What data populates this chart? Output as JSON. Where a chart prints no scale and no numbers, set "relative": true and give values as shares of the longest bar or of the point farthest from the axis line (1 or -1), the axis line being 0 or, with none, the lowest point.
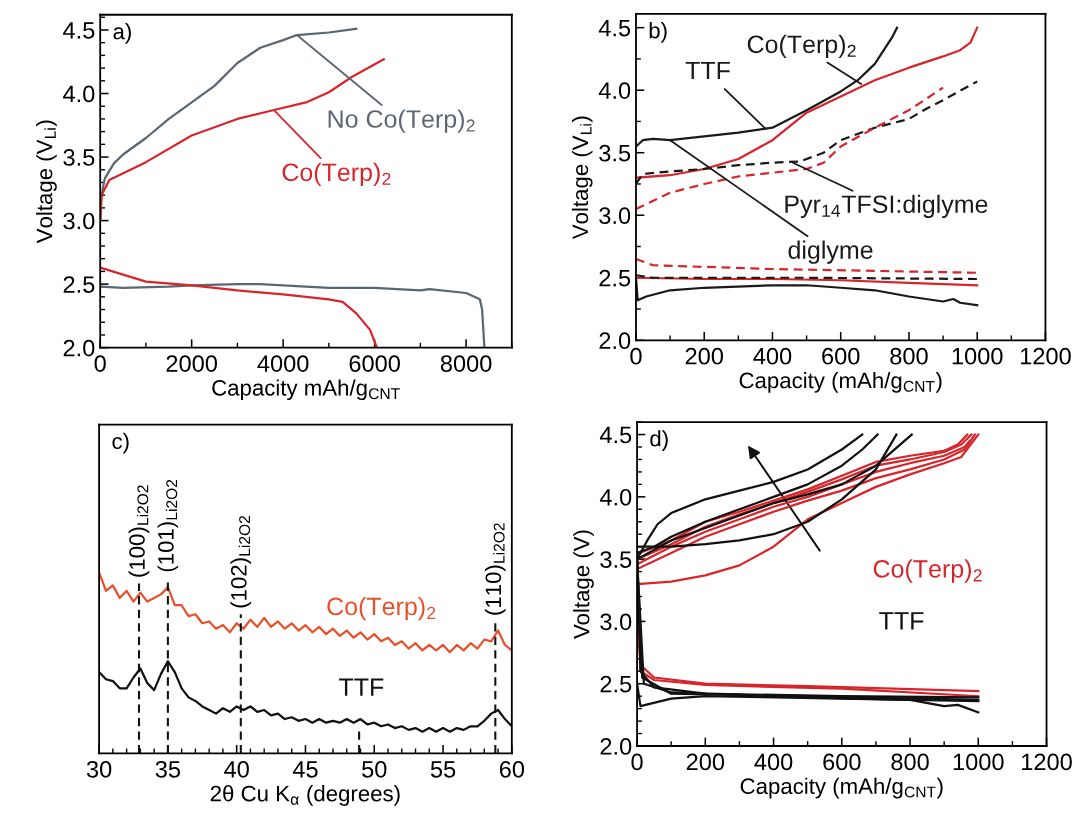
{
  "chart_data": [
    {
      "type": "line",
      "title": "a)",
      "xlabel": "Capacity mAh/g$_{CNT}$",
      "ylabel": "Voltage (V$_{Li}$)",
      "xlim": [
        0,
        9000
      ],
      "ylim": [
        2.0,
        4.62
      ],
      "xticks": [
        0,
        2000,
        4000,
        6000,
        8000
      ],
      "yticks": [
        {
          "value": 2.0,
          "label": "2.0"
        },
        {
          "value": 2.5,
          "label": "2.5"
        },
        {
          "value": 3.0,
          "label": "3.0"
        },
        {
          "value": 3.5,
          "label": "3.5"
        },
        {
          "value": 4.0,
          "label": "4.0"
        },
        {
          "value": 4.5,
          "label": "4.5"
        }
      ],
      "series": [
        {
          "color": "#5b6673",
          "x": [
            0,
            30,
            100,
            300,
            500,
            1000,
            1500,
            2000,
            2500,
            3000,
            3500,
            4000,
            4300,
            5000,
            5600
          ],
          "values": [
            3.0,
            3.2,
            3.33,
            3.45,
            3.52,
            3.65,
            3.8,
            3.93,
            4.06,
            4.24,
            4.36,
            4.42,
            4.46,
            4.48,
            4.51
          ]
        },
        {
          "color": "#d7262b",
          "x": [
            0,
            30,
            200,
            1000,
            2000,
            3000,
            3800,
            4500,
            5000,
            5500,
            6200
          ],
          "values": [
            3.0,
            3.2,
            3.32,
            3.46,
            3.67,
            3.8,
            3.87,
            3.93,
            4.01,
            4.13,
            4.27
          ]
        },
        {
          "color": "#5b6673",
          "x": [
            0,
            500,
            1500,
            2000,
            3000,
            3500,
            4000,
            5000,
            6000,
            7000,
            7200,
            8000,
            8300,
            8350,
            8400
          ],
          "values": [
            2.48,
            2.47,
            2.48,
            2.49,
            2.5,
            2.5,
            2.49,
            2.47,
            2.47,
            2.45,
            2.46,
            2.43,
            2.38,
            2.3,
            2.0
          ]
        },
        {
          "color": "#d7262b",
          "x": [
            0,
            1000,
            2000,
            3000,
            4000,
            4500,
            5000,
            5300,
            5600,
            5900,
            6050
          ],
          "values": [
            2.63,
            2.52,
            2.49,
            2.45,
            2.42,
            2.4,
            2.38,
            2.36,
            2.27,
            2.14,
            2.0
          ]
        }
      ],
      "annotations": [
        {
          "text": "No Co(Terp)$_{2}$",
          "x": 4300,
          "y": 4.46
        },
        {
          "text": "Co(Terp)$_{2}$",
          "x": 3800,
          "y": 3.87
        }
      ]
    },
    {
      "type": "line",
      "title": "b)",
      "xlabel": "Capacity (mAh/g$_{CNT}$)",
      "ylabel": "Voltage (V$_{Li}$)",
      "xlim": [
        0,
        1200
      ],
      "ylim": [
        2.0,
        4.61
      ],
      "xticks": [
        0,
        200,
        400,
        600,
        800,
        1000,
        1200
      ],
      "yticks": [
        {
          "value": 2.0,
          "label": "2.0"
        },
        {
          "value": 2.5,
          "label": "2.5"
        },
        {
          "value": 3.0,
          "label": "3.0"
        },
        {
          "value": 3.5,
          "label": "3.5"
        },
        {
          "value": 4.0,
          "label": "4.0"
        },
        {
          "value": 4.5,
          "label": "4.5"
        }
      ],
      "series": [
        {
          "color": "#1a1a1a",
          "line_style": "solid",
          "x": [
            0,
            20,
            50,
            100,
            200,
            300,
            400,
            500,
            600,
            650,
            700,
            750,
            765
          ],
          "values": [
            3.55,
            3.6,
            3.61,
            3.6,
            3.63,
            3.66,
            3.7,
            3.84,
            3.99,
            4.08,
            4.21,
            4.42,
            4.5
          ]
        },
        {
          "color": "#d7262b",
          "line_style": "solid",
          "x": [
            0,
            100,
            200,
            300,
            400,
            500,
            600,
            700,
            800,
            900,
            950,
            980,
            1000
          ],
          "values": [
            3.3,
            3.32,
            3.37,
            3.45,
            3.6,
            3.82,
            3.95,
            4.08,
            4.18,
            4.27,
            4.32,
            4.38,
            4.5
          ]
        },
        {
          "color": "#1a1a1a",
          "line_style": "dashed",
          "x": [
            0,
            20,
            100,
            200,
            300,
            400,
            480,
            550,
            600,
            700,
            800,
            850,
            900,
            1000
          ],
          "values": [
            3.25,
            3.33,
            3.35,
            3.37,
            3.4,
            3.42,
            3.43,
            3.5,
            3.6,
            3.7,
            3.77,
            3.85,
            3.92,
            4.07
          ]
        },
        {
          "color": "#d7262b",
          "line_style": "dashed",
          "x": [
            0,
            100,
            200,
            300,
            400,
            500,
            550,
            600,
            700,
            800,
            900
          ],
          "values": [
            3.05,
            3.18,
            3.25,
            3.31,
            3.34,
            3.37,
            3.42,
            3.55,
            3.7,
            3.84,
            4.02
          ]
        },
        {
          "color": "#1a1a1a",
          "line_style": "solid",
          "x": [
            0,
            5,
            30,
            100,
            200,
            400,
            500,
            600,
            700,
            800,
            900,
            930,
            950,
            1000
          ],
          "values": [
            2.5,
            2.32,
            2.35,
            2.4,
            2.42,
            2.44,
            2.44,
            2.42,
            2.4,
            2.35,
            2.31,
            2.33,
            2.3,
            2.28
          ]
        },
        {
          "color": "#d7262b",
          "line_style": "solid",
          "x": [
            0,
            200,
            400,
            600,
            800,
            1000
          ],
          "values": [
            2.5,
            2.49,
            2.49,
            2.48,
            2.46,
            2.44
          ]
        },
        {
          "color": "#1a1a1a",
          "line_style": "dashed",
          "x": [
            0,
            50,
            500,
            1000
          ],
          "values": [
            2.52,
            2.5,
            2.5,
            2.49
          ]
        },
        {
          "color": "#d7262b",
          "line_style": "dashed",
          "x": [
            0,
            50,
            400,
            1000
          ],
          "values": [
            2.65,
            2.6,
            2.57,
            2.54
          ]
        }
      ],
      "annotations": [
        {
          "text": "TTF",
          "x": 380,
          "y": 3.69
        },
        {
          "text": "Co(Terp)$_{2}$",
          "x": 660,
          "y": 4.05
        },
        {
          "text": "Pyr$_{14}$TFSI:diglyme",
          "x": 460,
          "y": 3.42
        },
        {
          "text": "diglyme",
          "x": 100,
          "y": 3.6
        }
      ]
    },
    {
      "type": "line",
      "title": "c)",
      "xlabel": "2θ Cu K$_{α}$ (degrees)",
      "relative": true,
      "tick_labels": "x",
      "xlim": [
        30,
        60
      ],
      "xticks": [
        30,
        35,
        40,
        45,
        50,
        55,
        60
      ],
      "x": [
        30,
        30.5,
        31,
        31.5,
        32,
        32.5,
        33,
        33.5,
        34,
        34.5,
        35,
        35.5,
        36,
        36.5,
        37,
        37.5,
        38,
        38.5,
        39,
        39.5,
        40,
        40.5,
        41,
        41.5,
        42,
        42.5,
        43,
        43.5,
        44,
        44.5,
        45,
        45.5,
        46,
        46.5,
        47,
        47.5,
        48,
        48.5,
        49,
        49.5,
        50,
        50.5,
        51,
        51.5,
        52,
        52.5,
        53,
        53.5,
        54,
        54.5,
        55,
        55.5,
        56,
        56.5,
        57,
        57.5,
        58,
        58.5,
        59,
        59.5,
        60
      ],
      "series": [
        {
          "name": "Co(Terp)$_{2}$",
          "color": "#e8502c",
          "values": [
            1.0,
            0.9,
            0.93,
            0.86,
            0.9,
            0.84,
            0.89,
            0.84,
            0.86,
            0.88,
            0.92,
            0.82,
            0.82,
            0.76,
            0.77,
            0.72,
            0.73,
            0.69,
            0.71,
            0.67,
            0.72,
            0.69,
            0.74,
            0.7,
            0.75,
            0.7,
            0.73,
            0.69,
            0.72,
            0.68,
            0.71,
            0.67,
            0.7,
            0.66,
            0.69,
            0.65,
            0.68,
            0.64,
            0.67,
            0.63,
            0.66,
            0.62,
            0.64,
            0.6,
            0.62,
            0.58,
            0.61,
            0.57,
            0.6,
            0.57,
            0.6,
            0.56,
            0.6,
            0.57,
            0.61,
            0.58,
            0.63,
            0.62,
            0.68,
            0.6,
            0.57
          ]
        },
        {
          "name": "TTF",
          "color": "#111111",
          "values": [
            0.45,
            0.41,
            0.4,
            0.36,
            0.36,
            0.42,
            0.47,
            0.39,
            0.35,
            0.44,
            0.51,
            0.45,
            0.36,
            0.31,
            0.29,
            0.26,
            0.24,
            0.22,
            0.25,
            0.23,
            0.26,
            0.24,
            0.26,
            0.23,
            0.24,
            0.21,
            0.22,
            0.19,
            0.2,
            0.18,
            0.19,
            0.17,
            0.19,
            0.17,
            0.18,
            0.17,
            0.19,
            0.17,
            0.19,
            0.16,
            0.17,
            0.15,
            0.16,
            0.14,
            0.15,
            0.13,
            0.14,
            0.12,
            0.14,
            0.12,
            0.14,
            0.12,
            0.14,
            0.13,
            0.15,
            0.15,
            0.18,
            0.22,
            0.24,
            0.19,
            0.15
          ]
        }
      ],
      "ref_lines": [
        {
          "axis": "x",
          "value": 32.9,
          "label": "(100)$_{Li2O2}$",
          "color": "#111111",
          "line_style": "dashed"
        },
        {
          "axis": "x",
          "value": 35.0,
          "label": "(101)$_{Li2O2}$",
          "color": "#111111",
          "line_style": "dashed"
        },
        {
          "axis": "x",
          "value": 40.3,
          "label": "(102)$_{Li2O2}$",
          "color": "#111111",
          "line_style": "dashed"
        },
        {
          "axis": "x",
          "value": 48.9,
          "label": null,
          "color": "#111111",
          "line_style": "dashed"
        },
        {
          "axis": "x",
          "value": 58.8,
          "label": "(110)$_{Li2O2}$",
          "color": "#111111",
          "line_style": "dashed"
        }
      ]
    },
    {
      "type": "line",
      "title": "d)",
      "xlabel": "Capacity (mAh/g$_{CNT}$)",
      "ylabel": "Voltage (V)",
      "xlim": [
        0,
        1200
      ],
      "ylim": [
        2.0,
        4.6
      ],
      "xticks": [
        0,
        200,
        400,
        600,
        800,
        1000,
        1200
      ],
      "yticks": [
        {
          "value": 2.0,
          "label": "2.0"
        },
        {
          "value": 2.5,
          "label": "2.5"
        },
        {
          "value": 3.0,
          "label": "3.0"
        },
        {
          "value": 3.5,
          "label": "3.5"
        },
        {
          "value": 4.0,
          "label": "4.0"
        },
        {
          "value": 4.5,
          "label": "4.5"
        }
      ],
      "series": [
        {
          "name": "Co(Terp)$_{2}$",
          "color": "#d7262b",
          "x": [
            0,
            100,
            200,
            300,
            400,
            500,
            600,
            700,
            800,
            900,
            950,
            1000
          ],
          "values": [
            3.3,
            3.32,
            3.37,
            3.45,
            3.6,
            3.82,
            3.95,
            4.08,
            4.18,
            4.27,
            4.32,
            4.5
          ]
        },
        {
          "color": "#d7262b",
          "x": [
            0,
            100,
            200,
            300,
            400,
            500,
            600,
            700,
            800,
            900,
            960,
            990
          ],
          "values": [
            3.42,
            3.55,
            3.68,
            3.78,
            3.88,
            3.97,
            4.05,
            4.15,
            4.22,
            4.3,
            4.38,
            4.5
          ]
        },
        {
          "color": "#d7262b",
          "x": [
            0,
            100,
            200,
            300,
            400,
            500,
            600,
            700,
            800,
            900,
            960,
            975
          ],
          "values": [
            3.46,
            3.6,
            3.72,
            3.82,
            3.92,
            4.0,
            4.1,
            4.2,
            4.27,
            4.33,
            4.4,
            4.45
          ]
        },
        {
          "color": "#d7262b",
          "x": [
            0,
            100,
            200,
            300,
            400,
            500,
            600,
            700,
            800,
            900,
            950,
            980
          ],
          "values": [
            3.5,
            3.62,
            3.76,
            3.86,
            3.95,
            4.04,
            4.14,
            4.25,
            4.3,
            4.36,
            4.42,
            4.5
          ]
        },
        {
          "color": "#d7262b",
          "x": [
            0,
            100,
            200,
            300,
            400,
            500,
            600,
            700,
            800,
            900,
            940,
            968
          ],
          "values": [
            3.54,
            3.65,
            3.8,
            3.88,
            3.97,
            4.06,
            4.17,
            4.28,
            4.33,
            4.37,
            4.42,
            4.5
          ]
        },
        {
          "name": "TTF",
          "color": "#111111",
          "x": [
            0,
            30,
            60,
            100,
            200,
            300,
            400,
            500,
            600,
            660
          ],
          "values": [
            3.5,
            3.65,
            3.78,
            3.87,
            3.98,
            4.05,
            4.12,
            4.22,
            4.38,
            4.5
          ]
        },
        {
          "color": "#111111",
          "x": [
            0,
            50,
            100,
            200,
            300,
            400,
            500,
            600,
            660,
            705
          ],
          "values": [
            3.55,
            3.6,
            3.68,
            3.8,
            3.9,
            4.0,
            4.1,
            4.25,
            4.38,
            4.5
          ]
        },
        {
          "color": "#111111",
          "x": [
            0,
            100,
            200,
            300,
            400,
            500,
            600,
            700,
            760
          ],
          "values": [
            3.6,
            3.6,
            3.62,
            3.65,
            3.7,
            3.8,
            3.98,
            4.22,
            4.5
          ]
        },
        {
          "color": "#111111",
          "x": [
            0,
            100,
            200,
            300,
            400,
            500,
            600,
            700,
            805
          ],
          "values": [
            3.5,
            3.65,
            3.75,
            3.85,
            3.95,
            4.02,
            4.1,
            4.25,
            4.5
          ]
        },
        {
          "color": "#d7262b",
          "x": [
            0,
            10,
            50,
            200,
            500,
            1000
          ],
          "values": [
            3.4,
            2.65,
            2.55,
            2.5,
            2.48,
            2.44
          ]
        },
        {
          "color": "#d7262b",
          "x": [
            0,
            10,
            50,
            200,
            600,
            1000
          ],
          "values": [
            3.3,
            2.6,
            2.53,
            2.49,
            2.46,
            2.4
          ]
        },
        {
          "color": "#111111",
          "x": [
            0,
            10,
            50,
            200,
            600,
            1000
          ],
          "values": [
            3.55,
            2.6,
            2.47,
            2.42,
            2.4,
            2.39
          ]
        },
        {
          "color": "#111111",
          "x": [
            0,
            10,
            100,
            200,
            600,
            1000
          ],
          "values": [
            2.5,
            2.32,
            2.38,
            2.4,
            2.38,
            2.36
          ]
        },
        {
          "color": "#111111",
          "x": [
            0,
            20,
            100,
            500,
            800,
            900,
            940,
            1000
          ],
          "values": [
            3.5,
            2.5,
            2.43,
            2.39,
            2.37,
            2.32,
            2.33,
            2.27
          ]
        },
        {
          "color": "#111111",
          "x": [
            0,
            15,
            100,
            500,
            1000
          ],
          "values": [
            3.5,
            2.55,
            2.42,
            2.4,
            2.37
          ]
        }
      ]
    }
  ]
}
